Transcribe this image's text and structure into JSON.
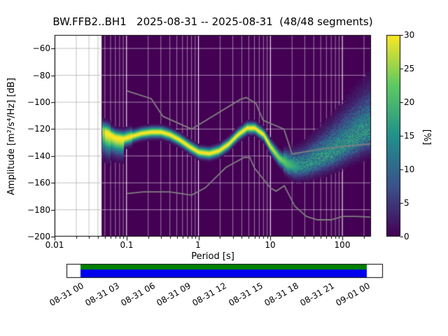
{
  "chart_data": {
    "type": "heatmap",
    "title": "BW.FFB2..BH1   2025-08-31 -- 2025-08-31  (48/48 segments)",
    "xlabel": "Period [s]",
    "ylabel": "Amplitude [m²/s⁴/Hz] [dB]",
    "x_scale": "log",
    "xlim": [
      0.01,
      250
    ],
    "ylim": [
      -200,
      -50
    ],
    "grid": true,
    "background_color": "#440154",
    "no_data_min_period": 0.045,
    "xtick_values": [
      0.01,
      0.1,
      1,
      10,
      100
    ],
    "xtick_labels": [
      "0.01",
      "0.1",
      "1",
      "10",
      "100"
    ],
    "ytick_values": [
      -60,
      -80,
      -100,
      -120,
      -140,
      -160,
      -180,
      -200
    ],
    "ytick_labels": [
      "−60",
      "−80",
      "−100",
      "−120",
      "−140",
      "−160",
      "−180",
      "−200"
    ],
    "colorbar": {
      "label": "[%]",
      "min": 0,
      "max": 30,
      "tick_values": [
        0,
        5,
        10,
        15,
        20,
        25,
        30
      ],
      "tick_labels": [
        "0",
        "5",
        "10",
        "15",
        "20",
        "25",
        "30"
      ],
      "colormap": "viridis",
      "colormap_stops": [
        "#440154",
        "#3b528b",
        "#21918c",
        "#5ec962",
        "#fde725"
      ]
    },
    "mode_line": {
      "comment": "bright ridge of the PPSD probability distribution, period[s] vs dB",
      "x": [
        0.045,
        0.055,
        0.07,
        0.09,
        0.12,
        0.16,
        0.22,
        0.3,
        0.4,
        0.55,
        0.75,
        1.0,
        1.4,
        1.9,
        2.6,
        3.5,
        4.7,
        6.0,
        8.0,
        10,
        13,
        17,
        22,
        30,
        45,
        70,
        100,
        150,
        220
      ],
      "y": [
        -121,
        -123,
        -126,
        -127,
        -125,
        -123,
        -122,
        -122,
        -124,
        -128,
        -133,
        -137,
        -138,
        -136,
        -131,
        -124,
        -119,
        -119,
        -124,
        -133,
        -141,
        -146,
        -148,
        -147,
        -143,
        -138,
        -133,
        -127,
        -122
      ]
    },
    "noise_models": {
      "color": "#808080",
      "nhnm": {
        "x": [
          0.1,
          0.22,
          0.32,
          0.8,
          3.8,
          4.6,
          6.3,
          7.9,
          15.4,
          20,
          50,
          100,
          250
        ],
        "y": [
          -91.5,
          -97.4,
          -110.5,
          -120,
          -98,
          -96.5,
          -101,
          -113.5,
          -120,
          -138.5,
          -135,
          -133,
          -131
        ]
      },
      "nlnm": {
        "x": [
          0.1,
          0.17,
          0.4,
          0.8,
          1.24,
          2.4,
          4.3,
          5.16,
          6.0,
          10,
          12,
          15.6,
          21.9,
          31.6,
          45,
          70,
          101,
          154,
          250
        ],
        "y": [
          -168,
          -166.7,
          -166.7,
          -169.2,
          -163.7,
          -148.6,
          -141.1,
          -141.1,
          -149,
          -163.8,
          -166.2,
          -162.1,
          -177.5,
          -185,
          -187.5,
          -187.5,
          -185,
          -185,
          -185.5
        ]
      }
    },
    "timeline": {
      "labels": [
        "08-31 00",
        "08-31 03",
        "08-31 06",
        "08-31 09",
        "08-31 12",
        "08-31 15",
        "08-31 18",
        "08-31 21",
        "09-01 00"
      ],
      "data_color": "#008000",
      "processed_color": "#0000ee",
      "frame_color": "#000000"
    }
  }
}
